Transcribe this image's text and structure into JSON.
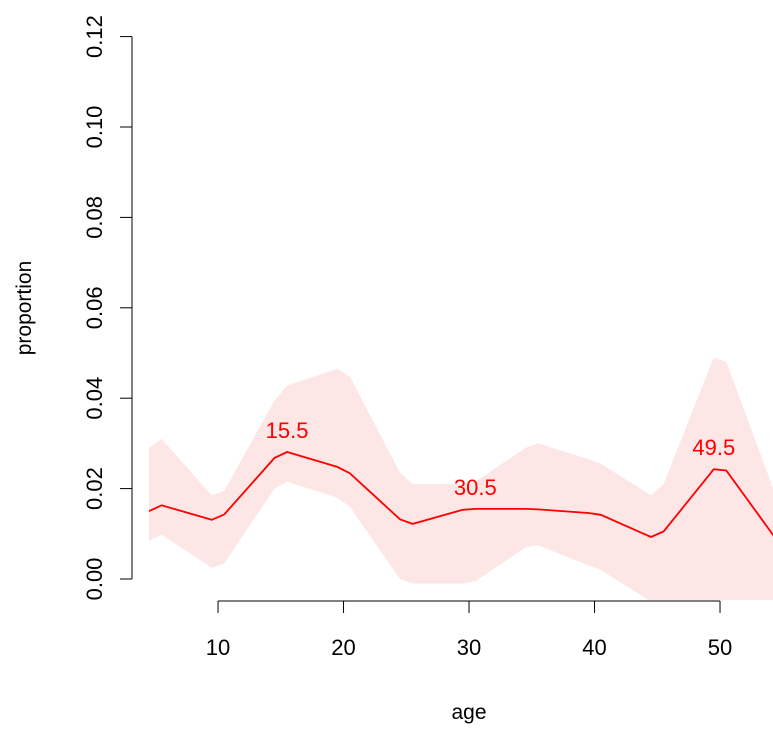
{
  "chart_data": {
    "type": "line",
    "title": "",
    "xlabel": "age",
    "ylabel": "proportion",
    "xlim": [
      4.5,
      54.5
    ],
    "ylim": [
      0,
      0.12
    ],
    "x_ticks": [
      10,
      20,
      30,
      40,
      50
    ],
    "x_tick_labels": [
      "10",
      "20",
      "30",
      "40",
      "50"
    ],
    "y_ticks": [
      0,
      0.02,
      0.04,
      0.06,
      0.08,
      0.1,
      0.12
    ],
    "y_tick_labels": [
      "0.00",
      "0.02",
      "0.04",
      "0.06",
      "0.08",
      "0.10",
      "0.12"
    ],
    "grid": false,
    "colors": {
      "line": "#ff0000",
      "band": "#fde6e6",
      "axis": "#000000"
    },
    "series": [
      {
        "x": [
          4.5,
          5.5,
          9.5,
          10.5,
          14.5,
          15.5,
          19.5,
          20.5,
          24.5,
          25.5,
          29.5,
          30.5,
          34.5,
          35.5,
          39.5,
          40.5,
          44.5,
          45.5,
          49.5,
          50.5,
          54.5
        ],
        "y": [
          0.015,
          0.0163,
          0.0131,
          0.0143,
          0.0268,
          0.0281,
          0.0248,
          0.0234,
          0.0132,
          0.0122,
          0.0153,
          0.0155,
          0.0155,
          0.0154,
          0.0146,
          0.0142,
          0.0093,
          0.0105,
          0.0243,
          0.024,
          0.0087
        ],
        "lower": [
          0.0085,
          0.0098,
          0.0025,
          0.0035,
          0.02,
          0.0215,
          0.018,
          0.016,
          0.0,
          -0.001,
          -0.001,
          -0.0005,
          0.007,
          0.0075,
          0.003,
          0.002,
          -0.005,
          -0.005,
          -0.005,
          -0.005,
          -0.005
        ],
        "upper": [
          0.029,
          0.031,
          0.0185,
          0.0195,
          0.0395,
          0.0428,
          0.0465,
          0.0448,
          0.0235,
          0.021,
          0.021,
          0.0215,
          0.029,
          0.03,
          0.0265,
          0.0255,
          0.0185,
          0.021,
          0.049,
          0.048,
          0.018
        ]
      }
    ],
    "annotations": [
      {
        "text": "15.5",
        "x": 15.5,
        "y": 0.0281
      },
      {
        "text": "30.5",
        "x": 30.5,
        "y": 0.0155
      },
      {
        "text": "49.5",
        "x": 49.5,
        "y": 0.0243
      }
    ]
  }
}
